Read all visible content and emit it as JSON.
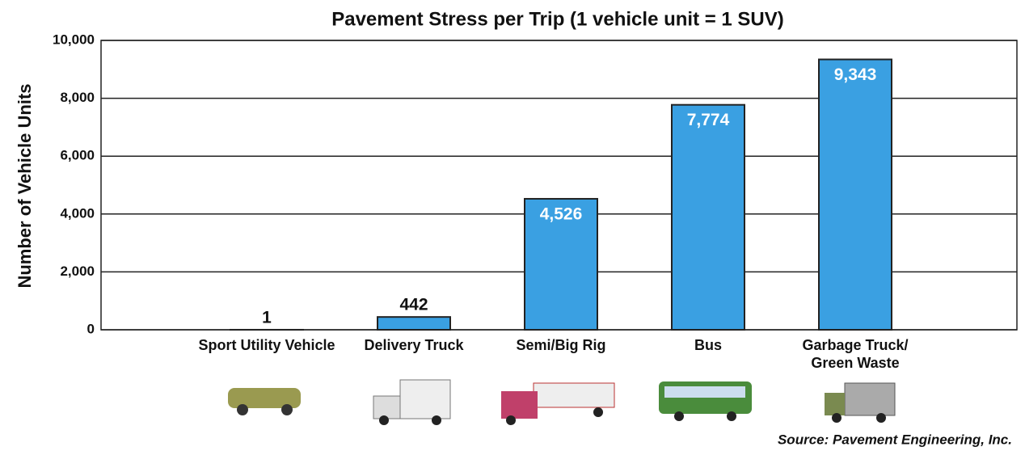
{
  "chart_data": {
    "type": "bar",
    "title": "Pavement Stress per Trip (1 vehicle unit = 1 SUV)",
    "y_label": "Number of Vehicle Units",
    "source": "Source: Pavement Engineering, Inc.",
    "categories": [
      "Sport Utility Vehicle",
      "Delivery Truck",
      "Semi/Big Rig",
      "Bus",
      "Garbage Truck/ Green Waste"
    ],
    "values": [
      1,
      442,
      4526,
      7774,
      9343
    ],
    "value_labels": [
      "1",
      "442",
      "4,526",
      "7,774",
      "9,343"
    ],
    "color": "#3aa0e2",
    "ylim": [
      0,
      10000
    ],
    "yticks": [
      0,
      {
        "value": 2000,
        "label": "2,000"
      },
      {
        "value": 4000,
        "label": "4,000"
      },
      {
        "value": 6000,
        "label": "6,000"
      },
      {
        "value": 8000,
        "label": "8,000"
      },
      {
        "value": 10000,
        "label": "10,000"
      }
    ],
    "grid": true
  }
}
